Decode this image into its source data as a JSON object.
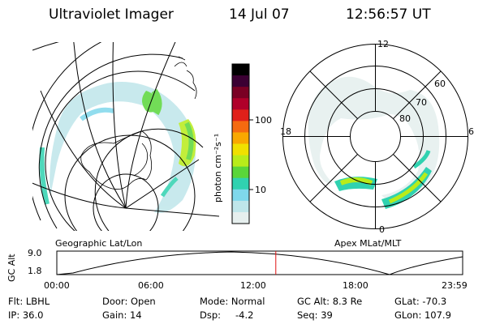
{
  "header": {
    "instrument": "Ultraviolet Imager",
    "date": "14 Jul 07",
    "time": "12:56:57 UT"
  },
  "left_panel": {
    "caption": "Geographic Lat/Lon"
  },
  "right_panel": {
    "caption": "Apex MLat/MLT",
    "mlt_labels": {
      "top": "12",
      "bottom": "0",
      "left": "18",
      "right": "6"
    },
    "lat_labels": [
      "60",
      "70",
      "80"
    ]
  },
  "colorbar": {
    "unit_label": "photon cm⁻²s⁻¹",
    "ticks": [
      "100",
      "10"
    ],
    "colors": [
      "#000000",
      "#3b0033",
      "#7a0024",
      "#b0002a",
      "#e0201a",
      "#f56a10",
      "#f9a800",
      "#f0e000",
      "#b8ec1a",
      "#5ad63a",
      "#30d2b0",
      "#7fd8ec",
      "#bfe6ea",
      "#e6efee"
    ]
  },
  "timeline": {
    "ylabel": "GC Alt",
    "ytick_top": "9.0",
    "ytick_bottom": "1.8",
    "xticks": [
      "00:00",
      "06:00",
      "12:00",
      "18:00",
      "23:59"
    ],
    "cursor_time": "12:57",
    "cursor_color": "#e01010"
  },
  "footer": {
    "flt": "Flt: LBHL",
    "ip": "IP: 36.0",
    "door": "Door: Open",
    "gain": "Gain: 14",
    "mode": "Mode: Normal",
    "dsp_label": "Dsp:",
    "dsp_value": "-4.2",
    "gc_alt": "GC Alt: 8.3 Re",
    "seq": "Seq: 39",
    "glat": "GLat: -70.3",
    "glon": "GLon: 107.9"
  }
}
